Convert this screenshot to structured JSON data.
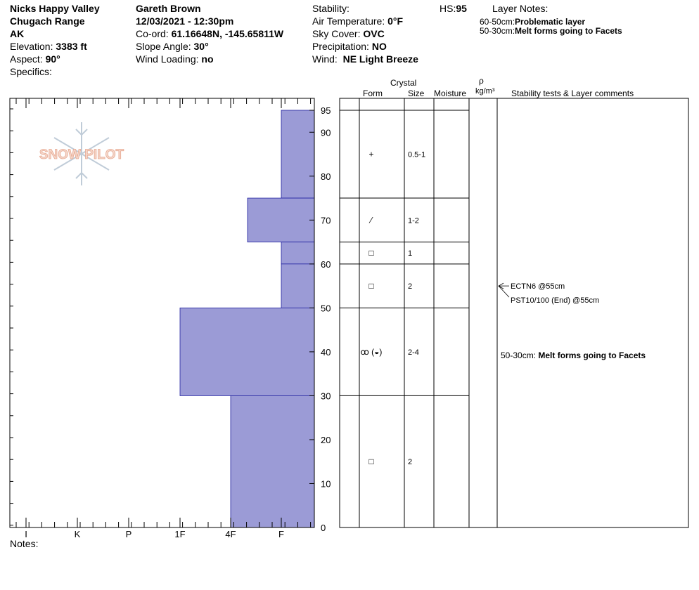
{
  "header": {
    "location_name": "Nicks Happy Valley",
    "range": "Chugach Range",
    "state": "AK",
    "elevation_label": "Elevation:",
    "elevation_value": "3383 ft",
    "aspect_label": "Aspect:",
    "aspect_value": "90°",
    "specifics_label": "Specifics:",
    "observer": "Gareth Brown",
    "datetime": "12/03/2021 - 12:30pm",
    "coord_label": "Co-ord:",
    "coord_value": "61.16648N, -145.65811W",
    "slope_label": "Slope Angle:",
    "slope_value": "30°",
    "wind_loading_label": "Wind Loading:",
    "wind_loading_value": "no",
    "stability_label": "Stability:",
    "air_temp_label": "Air Temperature:",
    "air_temp_value": "0°F",
    "sky_label": "Sky Cover:",
    "sky_value": "OVC",
    "precip_label": "Precipitation:",
    "precip_value": "NO",
    "wind_label": "Wind:",
    "wind_value": "NE Light Breeze",
    "hs_label": "HS:",
    "hs_value": "95",
    "layer_notes_label": "Layer Notes:",
    "layer_notes": [
      {
        "range": "60-50cm:",
        "text": "Problematic layer"
      },
      {
        "range": "50-30cm:",
        "text": "Melt forms going to Facets"
      }
    ]
  },
  "logo_text": "SNOW PILOT",
  "notes_label": "Notes:",
  "table_headers": {
    "crystal": "Crystal",
    "form": "Form",
    "size": "Size",
    "moisture": "Moisture",
    "rho": "ρ",
    "density_unit": "kg/m³",
    "comments": "Stability tests & Layer comments"
  },
  "colors": {
    "layer_fill": "#9b9bd6",
    "layer_stroke": "#2020a0",
    "logo": "#f0b8a0"
  },
  "chart_data": {
    "type": "bar",
    "title": "",
    "xlabel": "",
    "ylabel": "",
    "hardness_scale": [
      "I",
      "K",
      "P",
      "1F",
      "4F",
      "F"
    ],
    "y_ticks": [
      0,
      10,
      20,
      30,
      40,
      50,
      60,
      70,
      80,
      90,
      95
    ],
    "ylim": [
      0,
      95
    ],
    "layers": [
      {
        "top": 95,
        "bottom": 75,
        "hardness": "F"
      },
      {
        "top": 75,
        "bottom": 65,
        "hardness": "F+"
      },
      {
        "top": 65,
        "bottom": 60,
        "hardness": "F"
      },
      {
        "top": 60,
        "bottom": 50,
        "hardness": "F"
      },
      {
        "top": 50,
        "bottom": 30,
        "hardness": "1F"
      },
      {
        "top": 30,
        "bottom": 0,
        "hardness": "4F"
      }
    ],
    "crystals": [
      {
        "depth": 85,
        "form": "+",
        "size": "0.5-1"
      },
      {
        "depth": 70,
        "form": "⁄",
        "size": "1-2"
      },
      {
        "depth": 62.5,
        "form": "□",
        "size": "1"
      },
      {
        "depth": 55,
        "form": "□",
        "size": "2"
      },
      {
        "depth": 40,
        "form": "ꝏ (◒)",
        "size": "2-4"
      },
      {
        "depth": 15,
        "form": "□",
        "size": "2"
      }
    ],
    "tests": [
      {
        "depth": 55,
        "text": "ECTN6 @55cm"
      },
      {
        "depth": 55,
        "text": "PST10/100 (End) @55cm"
      }
    ],
    "layer_comments": [
      {
        "depth": 40,
        "range": "50-30cm:",
        "text": "Melt forms going to Facets"
      }
    ]
  }
}
